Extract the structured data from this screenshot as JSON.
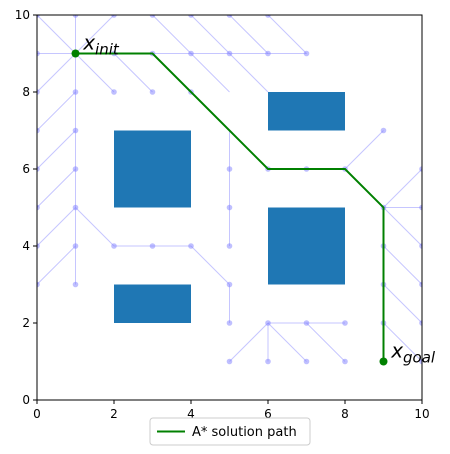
{
  "chart_data": {
    "type": "scatter",
    "xlim": [
      0,
      10
    ],
    "ylim": [
      0,
      10
    ],
    "xticks": [
      "0",
      "2",
      "4",
      "6",
      "8",
      "10"
    ],
    "yticks": [
      "0",
      "2",
      "4",
      "6",
      "8",
      "10"
    ],
    "grid": false,
    "legend_position": "bottom-center, below axes",
    "legend_entries": [
      "A* solution path"
    ],
    "colors": {
      "obstacle": "#1f77b4",
      "tree": "#8080ff",
      "path": "#008000",
      "endpoint": "#008000"
    },
    "obstacles": [
      {
        "x": 2,
        "y": 5,
        "w": 2,
        "h": 2
      },
      {
        "x": 2,
        "y": 2,
        "w": 2,
        "h": 1
      },
      {
        "x": 6,
        "y": 7,
        "w": 2,
        "h": 1
      },
      {
        "x": 6,
        "y": 3,
        "w": 2,
        "h": 2
      }
    ],
    "tree_nodes": [
      [
        0,
        10
      ],
      [
        1,
        10
      ],
      [
        2,
        10
      ],
      [
        3,
        10
      ],
      [
        4,
        10
      ],
      [
        5,
        10
      ],
      [
        6,
        10
      ],
      [
        0,
        9
      ],
      [
        1,
        9
      ],
      [
        2,
        9
      ],
      [
        3,
        9
      ],
      [
        4,
        9
      ],
      [
        5,
        9
      ],
      [
        6,
        9
      ],
      [
        7,
        9
      ],
      [
        0,
        8
      ],
      [
        1,
        8
      ],
      [
        2,
        8
      ],
      [
        3,
        8
      ],
      [
        4,
        8
      ],
      [
        0,
        7
      ],
      [
        1,
        7
      ],
      [
        0,
        6
      ],
      [
        1,
        6
      ],
      [
        5,
        6
      ],
      [
        6,
        6
      ],
      [
        7,
        6
      ],
      [
        8,
        6
      ],
      [
        9,
        7
      ],
      [
        0,
        5
      ],
      [
        1,
        5
      ],
      [
        5,
        5
      ],
      [
        9,
        5
      ],
      [
        10,
        5
      ],
      [
        0,
        4
      ],
      [
        1,
        4
      ],
      [
        2,
        4
      ],
      [
        3,
        4
      ],
      [
        4,
        4
      ],
      [
        5,
        4
      ],
      [
        9,
        4
      ],
      [
        10,
        4
      ],
      [
        0,
        3
      ],
      [
        1,
        3
      ],
      [
        5,
        3
      ],
      [
        9,
        3
      ],
      [
        10,
        3
      ],
      [
        5,
        2
      ],
      [
        6,
        2
      ],
      [
        7,
        2
      ],
      [
        8,
        2
      ],
      [
        9,
        2
      ],
      [
        10,
        2
      ],
      [
        5,
        1
      ],
      [
        6,
        1
      ],
      [
        7,
        1
      ],
      [
        8,
        1
      ],
      [
        9,
        1
      ],
      [
        10,
        1
      ],
      [
        10,
        6
      ]
    ],
    "tree_edges": [
      [
        [
          0,
          10
        ],
        [
          1,
          9
        ]
      ],
      [
        [
          1,
          10
        ],
        [
          1,
          9
        ]
      ],
      [
        [
          2,
          10
        ],
        [
          1,
          9
        ]
      ],
      [
        [
          0,
          9
        ],
        [
          1,
          9
        ]
      ],
      [
        [
          1,
          9
        ],
        [
          2,
          9
        ]
      ],
      [
        [
          2,
          9
        ],
        [
          3,
          9
        ]
      ],
      [
        [
          3,
          9
        ],
        [
          4,
          9
        ]
      ],
      [
        [
          4,
          9
        ],
        [
          5,
          9
        ]
      ],
      [
        [
          5,
          9
        ],
        [
          6,
          9
        ]
      ],
      [
        [
          6,
          9
        ],
        [
          7,
          9
        ]
      ],
      [
        [
          3,
          10
        ],
        [
          4,
          9
        ]
      ],
      [
        [
          4,
          10
        ],
        [
          5,
          9
        ]
      ],
      [
        [
          5,
          10
        ],
        [
          6,
          9
        ]
      ],
      [
        [
          6,
          10
        ],
        [
          7,
          9
        ]
      ],
      [
        [
          2,
          9
        ],
        [
          3,
          8
        ]
      ],
      [
        [
          3,
          9
        ],
        [
          4,
          8
        ]
      ],
      [
        [
          4,
          9
        ],
        [
          5,
          8
        ]
      ],
      [
        [
          5,
          9
        ],
        [
          6,
          8
        ]
      ],
      [
        [
          0,
          8
        ],
        [
          1,
          9
        ]
      ],
      [
        [
          1,
          9
        ],
        [
          1,
          8
        ]
      ],
      [
        [
          1,
          9
        ],
        [
          2,
          8
        ]
      ],
      [
        [
          1,
          8
        ],
        [
          1,
          7
        ]
      ],
      [
        [
          1,
          7
        ],
        [
          1,
          6
        ]
      ],
      [
        [
          1,
          6
        ],
        [
          1,
          5
        ]
      ],
      [
        [
          1,
          5
        ],
        [
          1,
          4
        ]
      ],
      [
        [
          1,
          4
        ],
        [
          1,
          3
        ]
      ],
      [
        [
          0,
          7
        ],
        [
          1,
          8
        ]
      ],
      [
        [
          0,
          6
        ],
        [
          1,
          7
        ]
      ],
      [
        [
          0,
          5
        ],
        [
          1,
          6
        ]
      ],
      [
        [
          0,
          4
        ],
        [
          1,
          5
        ]
      ],
      [
        [
          0,
          3
        ],
        [
          1,
          4
        ]
      ],
      [
        [
          1,
          5
        ],
        [
          2,
          4
        ]
      ],
      [
        [
          2,
          4
        ],
        [
          3,
          4
        ]
      ],
      [
        [
          3,
          4
        ],
        [
          4,
          4
        ]
      ],
      [
        [
          4,
          4
        ],
        [
          5,
          3
        ]
      ],
      [
        [
          5,
          7
        ],
        [
          5,
          6
        ]
      ],
      [
        [
          5,
          6
        ],
        [
          5,
          5
        ]
      ],
      [
        [
          5,
          5
        ],
        [
          5,
          4
        ]
      ],
      [
        [
          5,
          3
        ],
        [
          5,
          2
        ]
      ],
      [
        [
          5,
          1
        ],
        [
          6,
          2
        ]
      ],
      [
        [
          6,
          2
        ],
        [
          7,
          2
        ]
      ],
      [
        [
          7,
          2
        ],
        [
          8,
          2
        ]
      ],
      [
        [
          6,
          2
        ],
        [
          7,
          1
        ]
      ],
      [
        [
          7,
          2
        ],
        [
          8,
          1
        ]
      ],
      [
        [
          6,
          2
        ],
        [
          6,
          1
        ]
      ],
      [
        [
          6,
          6
        ],
        [
          7,
          6
        ]
      ],
      [
        [
          7,
          6
        ],
        [
          8,
          6
        ]
      ],
      [
        [
          9,
          7
        ],
        [
          8,
          6
        ]
      ],
      [
        [
          9,
          5
        ],
        [
          10,
          6
        ]
      ],
      [
        [
          9,
          5
        ],
        [
          10,
          5
        ]
      ],
      [
        [
          9,
          5
        ],
        [
          10,
          4
        ]
      ],
      [
        [
          9,
          4
        ],
        [
          10,
          3
        ]
      ],
      [
        [
          9,
          3
        ],
        [
          10,
          2
        ]
      ],
      [
        [
          9,
          2
        ],
        [
          10,
          1
        ]
      ],
      [
        [
          9,
          5
        ],
        [
          9,
          1
        ]
      ]
    ],
    "series": [
      {
        "name": "A* solution path",
        "x": [
          1,
          3,
          6,
          8,
          9,
          9
        ],
        "y": [
          9,
          9,
          6,
          6,
          5,
          1
        ]
      }
    ],
    "annotations": [
      {
        "base": "x",
        "sub": "init",
        "x": 1.2,
        "y": 9.1
      },
      {
        "base": "x",
        "sub": "goal",
        "x": 9.2,
        "y": 1.1
      }
    ]
  }
}
